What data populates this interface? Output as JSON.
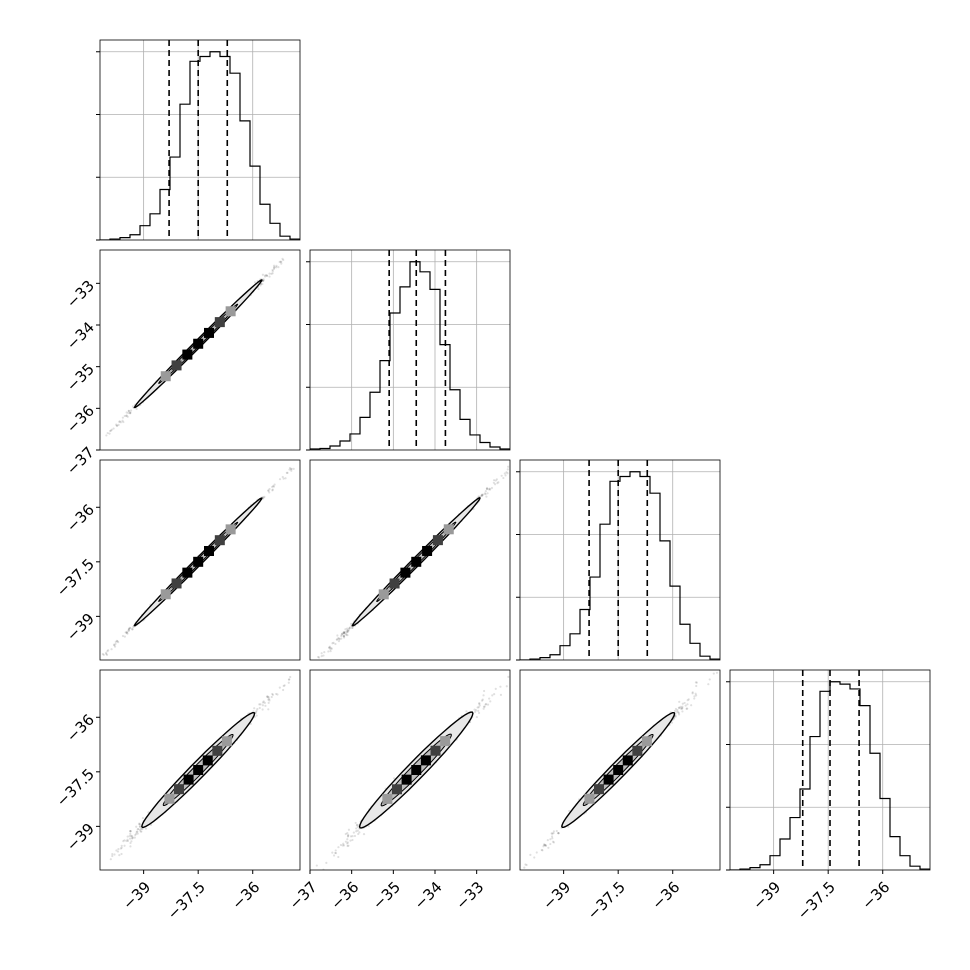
{
  "chart_data": {
    "type": "corner",
    "grid": true,
    "colors": {
      "line": "#000000",
      "grid": "#b0b0b0",
      "frame": "#000000",
      "scatter": "#000000"
    },
    "params": [
      {
        "range": [
          -40.2,
          -34.7
        ],
        "hist": {
          "edges_start": -40.2,
          "bin_width": 0.275,
          "counts": [
            0,
            2,
            5,
            11,
            30,
            55,
            106,
            174,
            285,
            375,
            385,
            395,
            385,
            350,
            250,
            155,
            75,
            35,
            8,
            2
          ]
        },
        "quantiles": [
          -38.3,
          -37.5,
          -36.7
        ]
      },
      {
        "range": [
          -37.0,
          -32.2
        ],
        "hist": {
          "edges_start": -37.0,
          "bin_width": 0.24,
          "counts": [
            2,
            3,
            8,
            18,
            32,
            65,
            115,
            178,
            273,
            325,
            375,
            355,
            320,
            210,
            120,
            61,
            30,
            15,
            6,
            2
          ]
        },
        "quantiles": [
          -35.1,
          -34.45,
          -33.75
        ]
      },
      {
        "range": [
          -40.2,
          -34.7
        ],
        "hist": {
          "edges_start": -40.2,
          "bin_width": 0.275,
          "counts": [
            0,
            2,
            5,
            11,
            30,
            55,
            106,
            174,
            285,
            375,
            385,
            395,
            385,
            350,
            250,
            155,
            75,
            35,
            8,
            2
          ]
        },
        "quantiles": [
          -38.3,
          -37.5,
          -36.7
        ]
      },
      {
        "range": [
          -40.2,
          -34.7
        ],
        "hist": {
          "edges_start": -40.2,
          "bin_width": 0.275,
          "counts": [
            0,
            2,
            5,
            11,
            30,
            65,
            110,
            170,
            280,
            375,
            395,
            390,
            380,
            345,
            245,
            150,
            70,
            30,
            8,
            2
          ]
        },
        "quantiles": [
          -38.2,
          -37.45,
          -36.65
        ]
      }
    ],
    "pairs": [
      {
        "row": 1,
        "col": 0,
        "center": [
          -37.5,
          -34.45
        ],
        "slope_x_to_y": 0.873,
        "half_length": 1.75,
        "half_width_y": 0.12
      },
      {
        "row": 2,
        "col": 0,
        "center": [
          -37.5,
          -37.5
        ],
        "slope_x_to_y": 1.0,
        "half_length": 1.75,
        "half_width_y": 0.14
      },
      {
        "row": 2,
        "col": 1,
        "center": [
          -34.45,
          -37.5
        ],
        "slope_x_to_y": 1.146,
        "half_length": 1.53,
        "half_width_y": 0.16
      },
      {
        "row": 3,
        "col": 0,
        "center": [
          -37.5,
          -37.45
        ],
        "slope_x_to_y": 1.0,
        "half_length": 1.55,
        "half_width_y": 0.3
      },
      {
        "row": 3,
        "col": 1,
        "center": [
          -34.45,
          -37.45
        ],
        "slope_x_to_y": 1.146,
        "half_length": 1.36,
        "half_width_y": 0.34
      },
      {
        "row": 3,
        "col": 2,
        "center": [
          -37.5,
          -37.45
        ],
        "slope_x_to_y": 1.0,
        "half_length": 1.55,
        "half_width_y": 0.3
      }
    ],
    "axes": {
      "row_tick_labels": {
        "1": [
          -37,
          -36,
          -35,
          -34,
          -33
        ],
        "2": [
          -39.0,
          -37.5,
          -36.0
        ],
        "3": [
          -39.0,
          -37.5,
          -36.0
        ]
      },
      "col_tick_labels": {
        "0": [
          -39.0,
          -37.5,
          -36.0
        ],
        "1": [
          -37,
          -36,
          -35,
          -34,
          -33
        ],
        "2": [
          -39.0,
          -37.5,
          -36.0
        ],
        "3": [
          -39.0,
          -37.5,
          -36.0
        ]
      }
    }
  }
}
